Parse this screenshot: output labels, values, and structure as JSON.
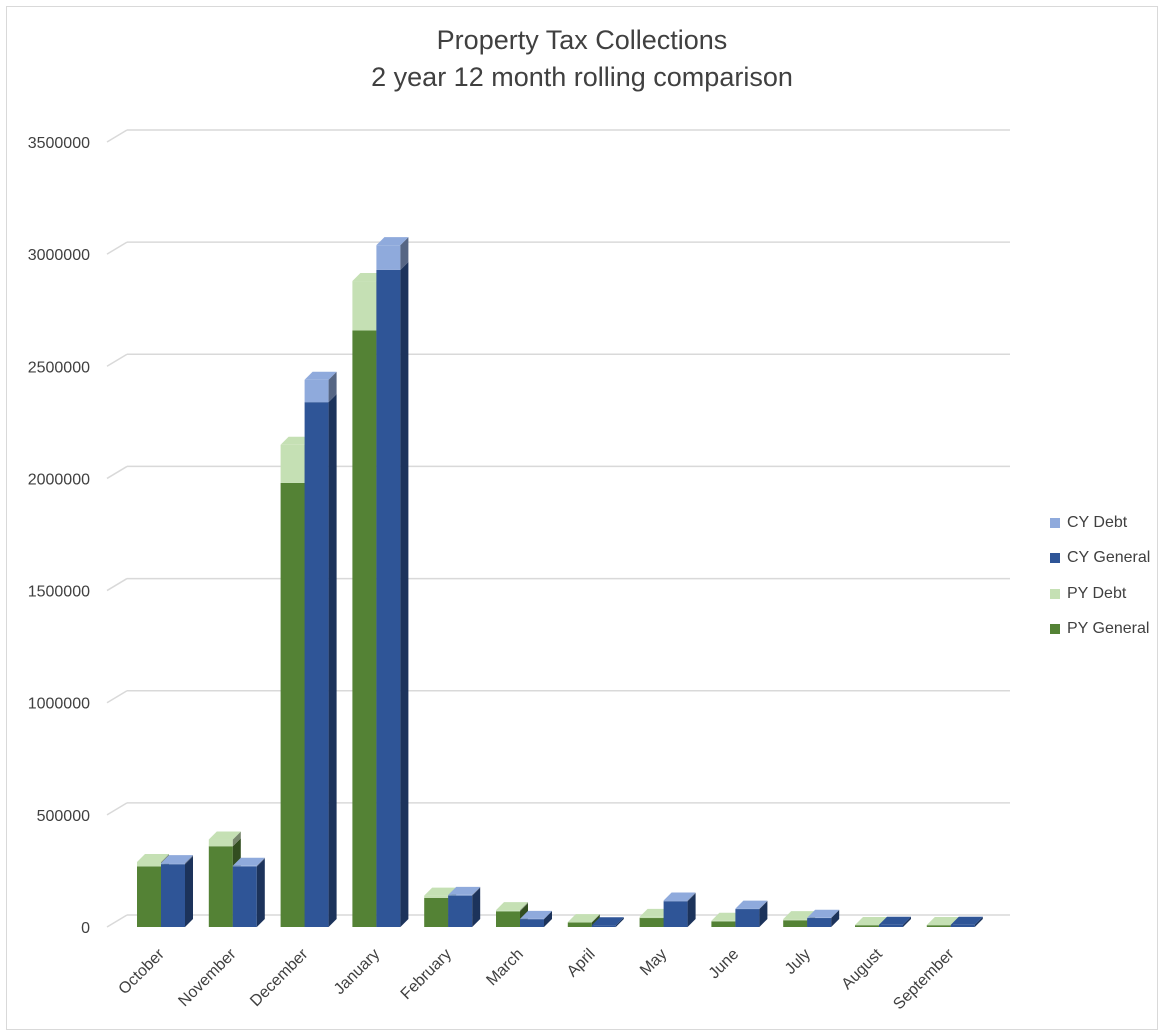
{
  "chart_data": {
    "type": "bar",
    "title": "Property Tax Collections",
    "subtitle": "2 year 12 month rolling comparison",
    "categories": [
      "October",
      "November",
      "December",
      "January",
      "February",
      "March",
      "April",
      "May",
      "June",
      "July",
      "August",
      "September"
    ],
    "yticks": [
      "0",
      "500000",
      "1000000",
      "1500000",
      "2000000",
      "2500000",
      "3000000",
      "3500000"
    ],
    "ylim": [
      0,
      3500000
    ],
    "stacked": true,
    "three_d": true,
    "grid": true,
    "legend_position": "right",
    "series": [
      {
        "name": "PY General",
        "stack": "PY",
        "color": "#548235",
        "values": [
          270000,
          360000,
          1980000,
          2660000,
          130000,
          70000,
          20000,
          40000,
          25000,
          30000,
          8000,
          8000
        ]
      },
      {
        "name": "PY Debt",
        "stack": "PY",
        "color": "#c5e0b4",
        "values": [
          20000,
          30000,
          170000,
          220000,
          10000,
          5000,
          2000,
          5000,
          3000,
          5000,
          1000,
          1000
        ]
      },
      {
        "name": "CY General",
        "stack": "CY",
        "color": "#2f5597",
        "values": [
          280000,
          270000,
          2340000,
          2930000,
          140000,
          35000,
          8000,
          115000,
          80000,
          40000,
          10000,
          10000
        ]
      },
      {
        "name": "CY Debt",
        "stack": "CY",
        "color": "#8faadc",
        "values": [
          5000,
          3000,
          100000,
          110000,
          3000,
          1000,
          0,
          3000,
          2000,
          1000,
          0,
          0
        ]
      }
    ],
    "legend_order": [
      "CY Debt",
      "CY General",
      "PY Debt",
      "PY General"
    ]
  }
}
